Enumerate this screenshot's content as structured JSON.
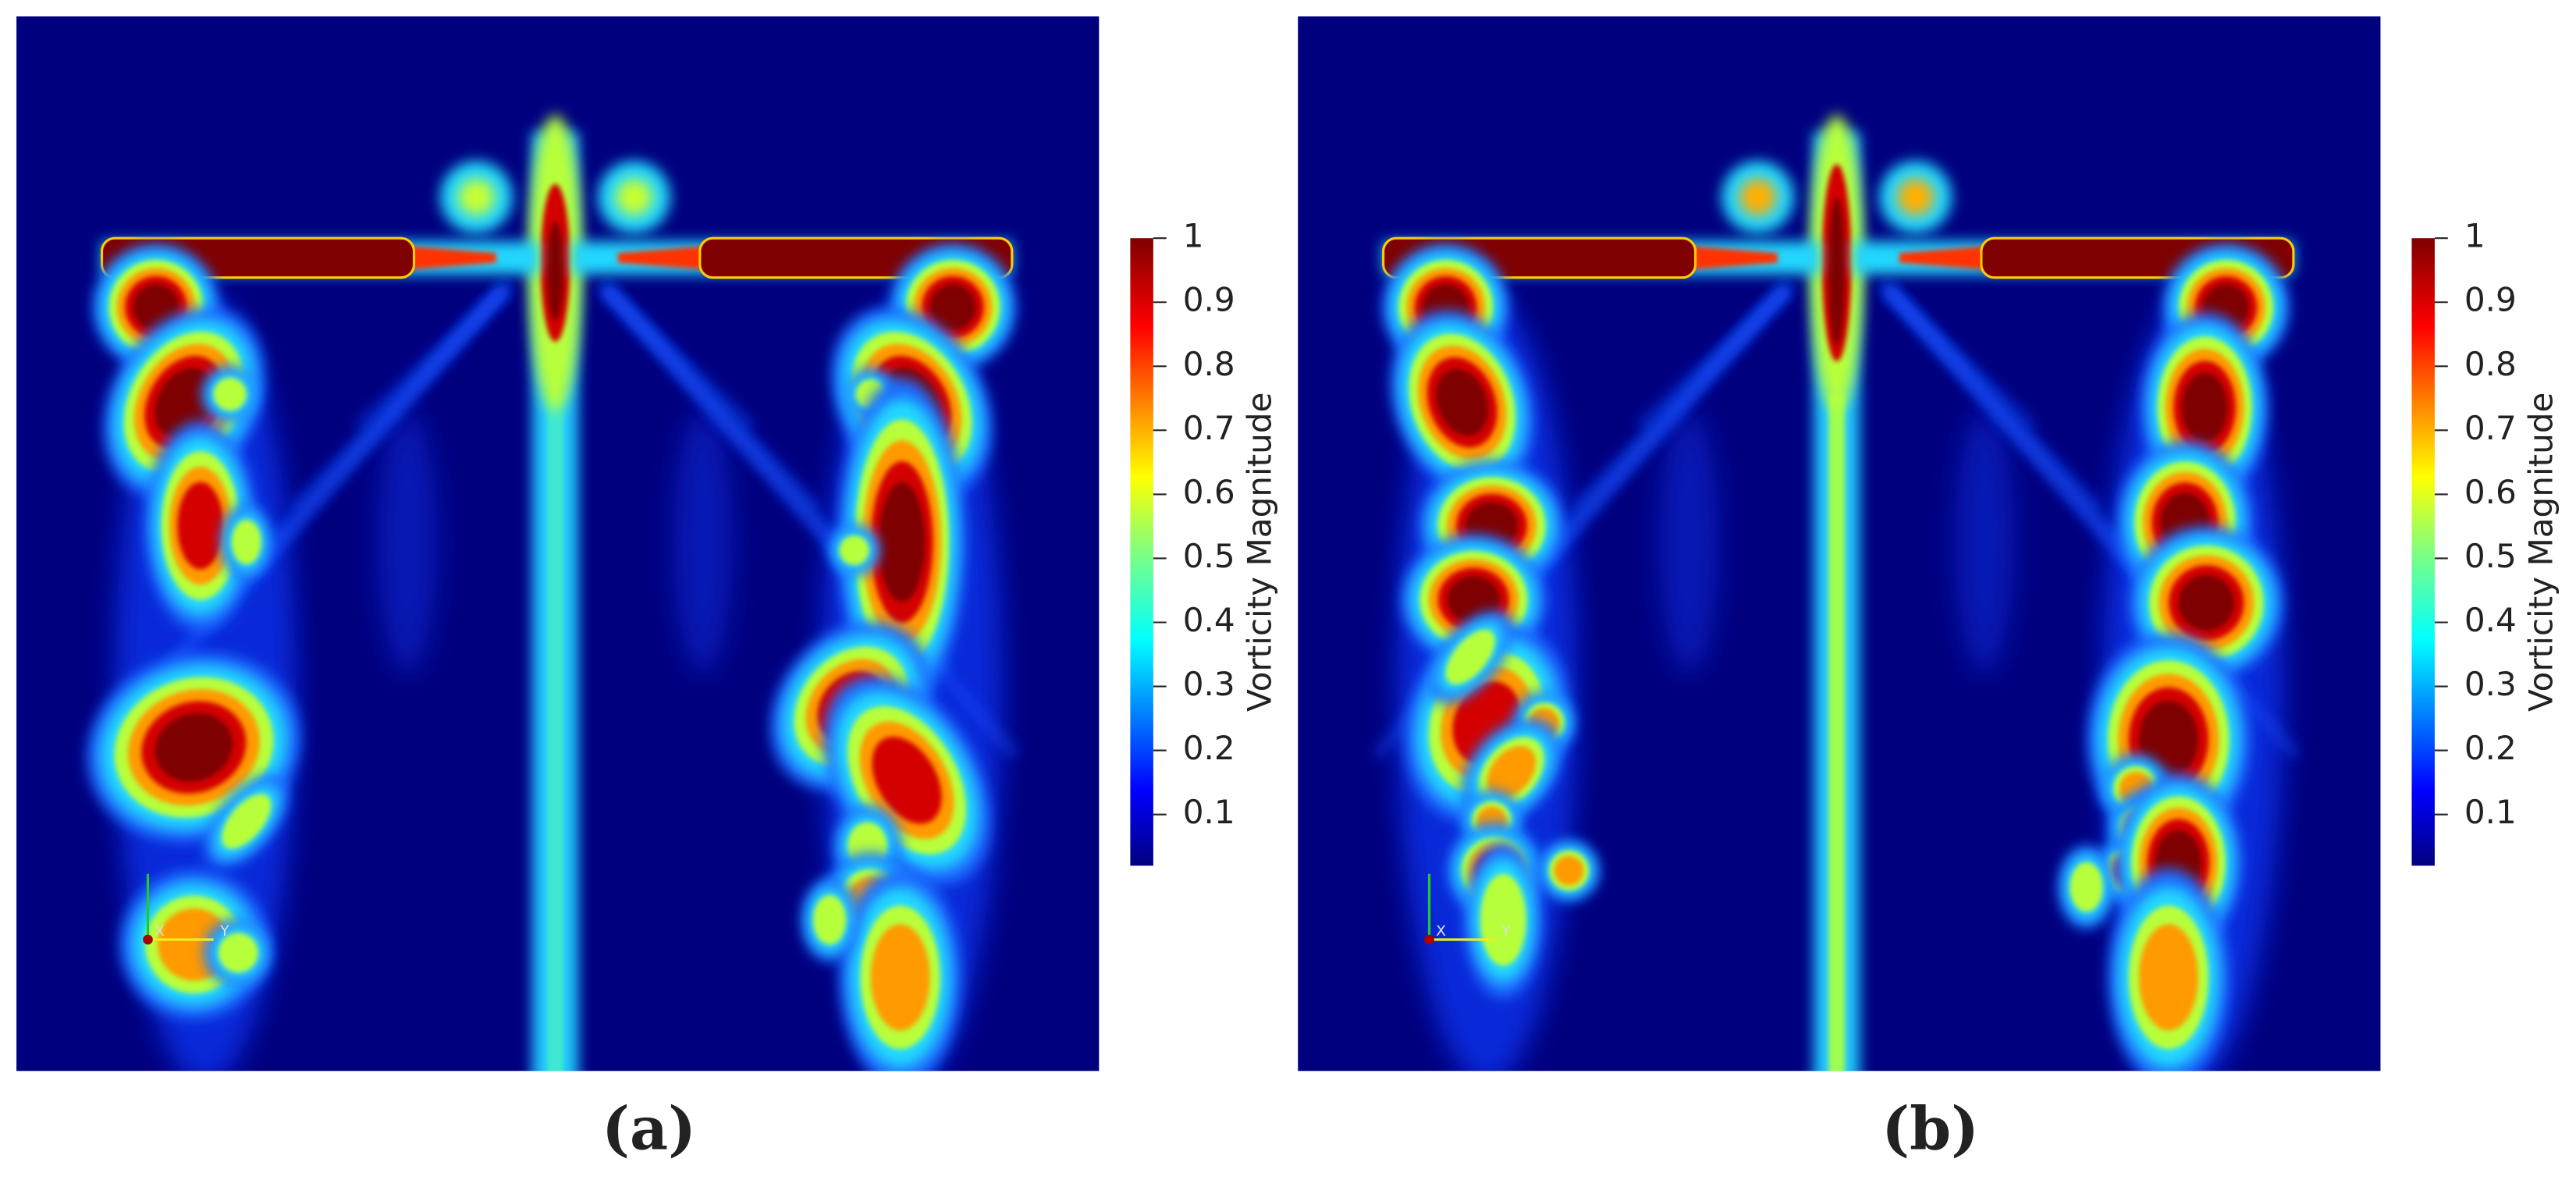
{
  "panels": [
    {
      "caption": "(a)",
      "colorbar": {
        "label": "Vorticity Magnitude",
        "lim": [
          0.02,
          1
        ],
        "ticks": [
          0.1,
          0.2,
          0.3,
          0.4,
          0.5,
          0.6,
          0.7,
          0.8,
          0.9,
          1
        ]
      },
      "triad": {
        "labels": [
          "X",
          "Y"
        ]
      }
    },
    {
      "caption": "(b)",
      "colorbar": {
        "label": "Vorticity Magnitude",
        "lim": [
          0.02,
          1
        ],
        "ticks": [
          0.1,
          0.2,
          0.3,
          0.4,
          0.5,
          0.6,
          0.7,
          0.8,
          0.9,
          1
        ]
      },
      "triad": {
        "labels": [
          "X",
          "Y"
        ]
      }
    }
  ]
}
